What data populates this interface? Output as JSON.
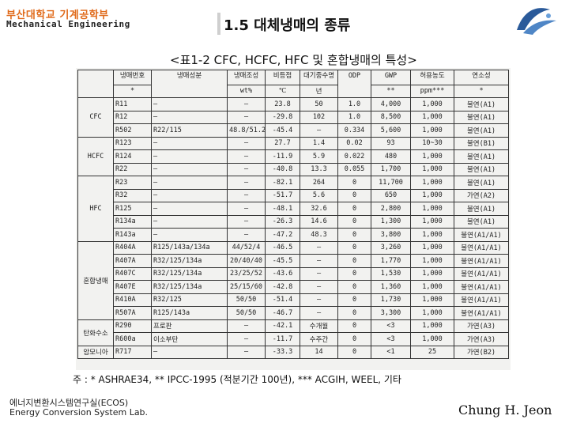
{
  "header": {
    "university_ko": "부산대학교 기계공학부",
    "department_en": "Mechanical Engineering"
  },
  "slide": {
    "title": "1.5 대체냉매의 종류",
    "subtitle": "<표1-2 CFC, HCFC, HFC 및 혼합냉매의 특성>"
  },
  "table": {
    "headers": [
      "냉매번호",
      "냉매성분",
      "냉매조성",
      "비등점",
      "대기중수명",
      "ODP",
      "GWP",
      "허용농도",
      "연소성"
    ],
    "subheaders": [
      "*",
      "",
      "wt%",
      "℃",
      "년",
      "",
      "**",
      "ppm***",
      "*"
    ],
    "groups": [
      "CFC",
      "HCFC",
      "HFC",
      "혼합냉매",
      "탄화수소",
      "암모니아"
    ],
    "rows": [
      {
        "no": "R11",
        "comp": "—",
        "ratio": "—",
        "bp": "23.8",
        "life": "50",
        "odp": "1.0",
        "gwp": "4,000",
        "tlv": "1,000",
        "flam": "불연(A1)"
      },
      {
        "no": "R12",
        "comp": "—",
        "ratio": "—",
        "bp": "-29.8",
        "life": "102",
        "odp": "1.0",
        "gwp": "8,500",
        "tlv": "1,000",
        "flam": "불연(A1)"
      },
      {
        "no": "R502",
        "comp": "R22/115",
        "ratio": "48.8/51.2",
        "bp": "-45.4",
        "life": "—",
        "odp": "0.334",
        "gwp": "5,600",
        "tlv": "1,000",
        "flam": "불연(A1)"
      },
      {
        "no": "R123",
        "comp": "—",
        "ratio": "—",
        "bp": "27.7",
        "life": "1.4",
        "odp": "0.02",
        "gwp": "93",
        "tlv": "10~30",
        "flam": "불연(B1)"
      },
      {
        "no": "R124",
        "comp": "—",
        "ratio": "—",
        "bp": "-11.9",
        "life": "5.9",
        "odp": "0.022",
        "gwp": "480",
        "tlv": "1,000",
        "flam": "불연(A1)"
      },
      {
        "no": "R22",
        "comp": "—",
        "ratio": "—",
        "bp": "-40.8",
        "life": "13.3",
        "odp": "0.055",
        "gwp": "1,700",
        "tlv": "1,000",
        "flam": "불연(A1)"
      },
      {
        "no": "R23",
        "comp": "—",
        "ratio": "—",
        "bp": "-82.1",
        "life": "264",
        "odp": "0",
        "gwp": "11,700",
        "tlv": "1,000",
        "flam": "불연(A1)"
      },
      {
        "no": "R32",
        "comp": "—",
        "ratio": "—",
        "bp": "-51.7",
        "life": "5.6",
        "odp": "0",
        "gwp": "650",
        "tlv": "1,000",
        "flam": "가연(A2)"
      },
      {
        "no": "R125",
        "comp": "—",
        "ratio": "—",
        "bp": "-48.1",
        "life": "32.6",
        "odp": "0",
        "gwp": "2,800",
        "tlv": "1,000",
        "flam": "불연(A1)"
      },
      {
        "no": "R134a",
        "comp": "—",
        "ratio": "—",
        "bp": "-26.3",
        "life": "14.6",
        "odp": "0",
        "gwp": "1,300",
        "tlv": "1,000",
        "flam": "불연(A1)"
      },
      {
        "no": "R143a",
        "comp": "—",
        "ratio": "—",
        "bp": "-47.2",
        "life": "48.3",
        "odp": "0",
        "gwp": "3,800",
        "tlv": "1,000",
        "flam": "불연(A1/A1)"
      },
      {
        "no": "R404A",
        "comp": "R125/143a/134a",
        "ratio": "44/52/4",
        "bp": "-46.5",
        "life": "—",
        "odp": "0",
        "gwp": "3,260",
        "tlv": "1,000",
        "flam": "불연(A1/A1)"
      },
      {
        "no": "R407A",
        "comp": "R32/125/134a",
        "ratio": "20/40/40",
        "bp": "-45.5",
        "life": "—",
        "odp": "0",
        "gwp": "1,770",
        "tlv": "1,000",
        "flam": "불연(A1/A1)"
      },
      {
        "no": "R407C",
        "comp": "R32/125/134a",
        "ratio": "23/25/52",
        "bp": "-43.6",
        "life": "—",
        "odp": "0",
        "gwp": "1,530",
        "tlv": "1,000",
        "flam": "불연(A1/A1)"
      },
      {
        "no": "R407E",
        "comp": "R32/125/134a",
        "ratio": "25/15/60",
        "bp": "-42.8",
        "life": "—",
        "odp": "0",
        "gwp": "1,360",
        "tlv": "1,000",
        "flam": "불연(A1/A1)"
      },
      {
        "no": "R410A",
        "comp": "R32/125",
        "ratio": "50/50",
        "bp": "-51.4",
        "life": "—",
        "odp": "0",
        "gwp": "1,730",
        "tlv": "1,000",
        "flam": "불연(A1/A1)"
      },
      {
        "no": "R507A",
        "comp": "R125/143a",
        "ratio": "50/50",
        "bp": "-46.7",
        "life": "—",
        "odp": "0",
        "gwp": "3,300",
        "tlv": "1,000",
        "flam": "불연(A1/A1)"
      },
      {
        "no": "R290",
        "comp": "프로판",
        "ratio": "—",
        "bp": "-42.1",
        "life": "수개월",
        "odp": "0",
        "gwp": "<3",
        "tlv": "1,000",
        "flam": "가연(A3)"
      },
      {
        "no": "R600a",
        "comp": "이소부탄",
        "ratio": "—",
        "bp": "-11.7",
        "life": "수주간",
        "odp": "0",
        "gwp": "<3",
        "tlv": "1,000",
        "flam": "가연(A3)"
      },
      {
        "no": "R717",
        "comp": "—",
        "ratio": "—",
        "bp": "-33.3",
        "life": "14",
        "odp": "0",
        "gwp": "<1",
        "tlv": "25",
        "flam": "가연(B2)"
      }
    ],
    "footnote": "주 : * ASHRAE34,  ** IPCC-1995 (적분기간 100년),  *** ACGIH, WEEL, 기타"
  },
  "footer": {
    "lab_ko": "에너지변환시스템연구실(ECOS)",
    "lab_en": "Energy Conversion System Lab.",
    "author": "Chung H. Jeon"
  }
}
